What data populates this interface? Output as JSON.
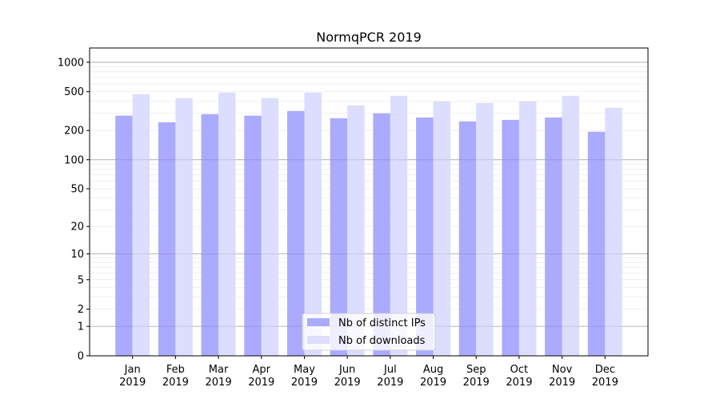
{
  "chart_data": {
    "type": "bar",
    "title": "NormqPCR 2019",
    "xlabel": "",
    "ylabel": "",
    "y_scale": "log10(1+y)",
    "ylim": [
      0,
      1400
    ],
    "grid": true,
    "legend_position": "bottom-center",
    "categories": [
      [
        "Jan",
        "2019"
      ],
      [
        "Feb",
        "2019"
      ],
      [
        "Mar",
        "2019"
      ],
      [
        "Apr",
        "2019"
      ],
      [
        "May",
        "2019"
      ],
      [
        "Jun",
        "2019"
      ],
      [
        "Jul",
        "2019"
      ],
      [
        "Aug",
        "2019"
      ],
      [
        "Sep",
        "2019"
      ],
      [
        "Oct",
        "2019"
      ],
      [
        "Nov",
        "2019"
      ],
      [
        "Dec",
        "2019"
      ]
    ],
    "y_ticks": [
      0,
      1,
      2,
      5,
      10,
      20,
      50,
      100,
      200,
      500,
      1000
    ],
    "y_tick_labels": [
      "0",
      "1",
      "2",
      "5",
      "10",
      "20",
      "50",
      "100",
      "200",
      "500",
      "1000"
    ],
    "series": [
      {
        "name": "Nb of distinct IPs",
        "color": "#aaaaff",
        "values": [
          284,
          243,
          294,
          284,
          317,
          267,
          300,
          272,
          248,
          257,
          272,
          194
        ]
      },
      {
        "name": "Nb of downloads",
        "color": "#ddddff",
        "values": [
          471,
          429,
          489,
          429,
          489,
          362,
          454,
          397,
          383,
          397,
          454,
          342
        ]
      }
    ]
  }
}
